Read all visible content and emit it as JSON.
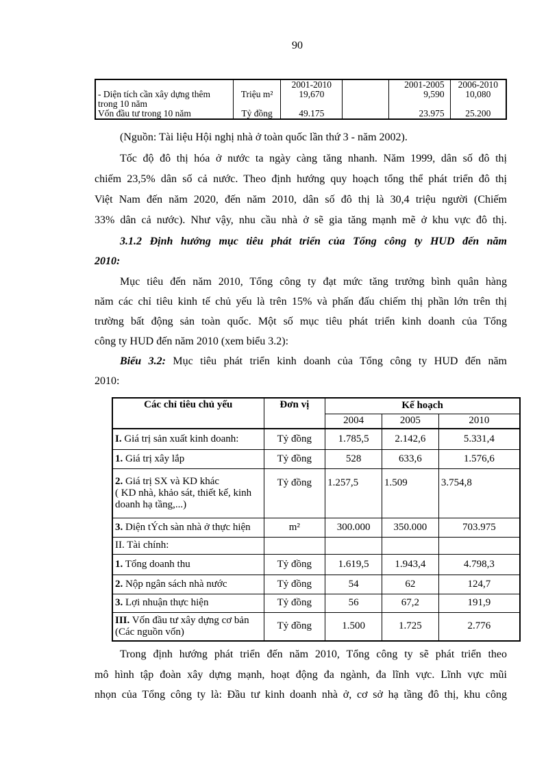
{
  "page_number": "90",
  "top_table": {
    "rows": [
      {
        "label": "- Diện tích cần xây dựng thêm trong 10 năm",
        "unit": "Triệu m²",
        "p1": "2001-2010",
        "v1": "19,670",
        "p2": "2001-2005",
        "v2": "9,590",
        "p3": "2006-2010",
        "v3": "10,080"
      },
      {
        "label": "Vốn đầu tư trong 10 năm",
        "unit": "Tỷ đồng",
        "v1": "49.175",
        "v2": "23.975",
        "v3": "25.200"
      }
    ]
  },
  "source": "(Nguồn: Tài liệu Hội nghị nhà ở toàn quốc lần thứ 3 - năm 2002).",
  "para1": [
    "Tốc độ đô thị hóa ở nước ta ngày càng tăng nhanh. Năm 1999, dân số đô thị",
    "chiếm 23,5% dân số cả nước. Theo định hướng quy hoạch tổng thể phát triển đô thị",
    "Việt Nam đến năm 2020, đến năm 2010, dân số đô thị là 30,4 triệu người (Chiếm",
    "33% dân cả nước). Như vậy, nhu cầu nhà ở sẽ gia tăng mạnh mẽ ở khu vực đô thị."
  ],
  "heading": [
    "3.1.2 Định hướng mục tiêu phát triển của Tổng công ty HUD đến năm",
    "2010:"
  ],
  "para2": [
    "Mục tiêu đến năm 2010, Tổng công ty đạt mức tăng trưởng bình quân hàng",
    "năm các chỉ tiêu kinh tế chủ yếu là trên 15% và phấn đấu chiếm thị phần lớn trên thị",
    "trường bất động sản toàn quốc. Một số mục tiêu phát triển kinh doanh của Tổng",
    "công ty HUD đến năm 2010 (xem biểu 3.2):"
  ],
  "caption": {
    "label": "Biểu 3.2:",
    "text": " Mục tiêu phát triển kinh doanh của Tổng công ty HUD đến năm",
    "line2": "2010:"
  },
  "main_table": {
    "headers": {
      "indicator": "Các chỉ tiêu chủ yếu",
      "unit": "Đơn vị",
      "plan": "Kế hoạch",
      "years": [
        "2004",
        "2005",
        "2010"
      ]
    },
    "rows": [
      {
        "num": "I.",
        "label": " Giá trị sản xuất kinh doanh:",
        "unit": "Tỷ đồng",
        "values": [
          "1.785,5",
          "2.142,6",
          "5.331,4"
        ]
      },
      {
        "num": "1.",
        "label": " Giá trị xây lắp",
        "unit": "Tỷ đồng",
        "values": [
          "528",
          "633,6",
          "1.576,6"
        ]
      },
      {
        "num": "2.",
        "label": " Giá trị SX và KD khác",
        "sub": "( KD nhà, khảo sát, thiết kế, kinh doanh hạ tầng,...)",
        "unit": "Tỷ đồng",
        "values": [
          "1.257,5",
          "1.509",
          "3.754,8"
        ]
      },
      {
        "num": "3.",
        "label": " Diện tÝch sàn nhà ở thực hiện",
        "unit": "m²",
        "values": [
          "300.000",
          "350.000",
          "703.975"
        ]
      },
      {
        "num": "",
        "label": "II. Tài chính:",
        "unit": "",
        "values": [
          "",
          "",
          ""
        ]
      },
      {
        "num": "1.",
        "label": " Tổng doanh thu",
        "unit": "Tỷ đồng",
        "values": [
          "1.619,5",
          "1.943,4",
          "4.798,3"
        ]
      },
      {
        "num": "2.",
        "label": " Nộp ngân sách nhà nước",
        "unit": "Tỷ đồng",
        "values": [
          "54",
          "62",
          "124,7"
        ]
      },
      {
        "num": "3.",
        "label": " Lợi nhuận thực hiện",
        "unit": "Tỷ đồng",
        "values": [
          "56",
          "67,2",
          "191,9"
        ]
      },
      {
        "num": "III.",
        "label": " Vốn đầu tư xây dựng cơ bản (Các nguồn vốn)",
        "unit": "Tỷ đồng",
        "values": [
          "1.500",
          "1.725",
          "2.776"
        ]
      }
    ]
  },
  "para3": [
    "Trong định hướng phát triển đến năm 2010, Tổng công ty sẽ phát triển theo",
    "mô hình tập đoàn xây dựng mạnh, hoạt động đa ngành, đa lĩnh vực. Lĩnh vực mũi",
    "nhọn của Tổng công ty là: Đầu tư kinh doanh nhà ở, cơ sở hạ tầng đô thị, khu công"
  ]
}
